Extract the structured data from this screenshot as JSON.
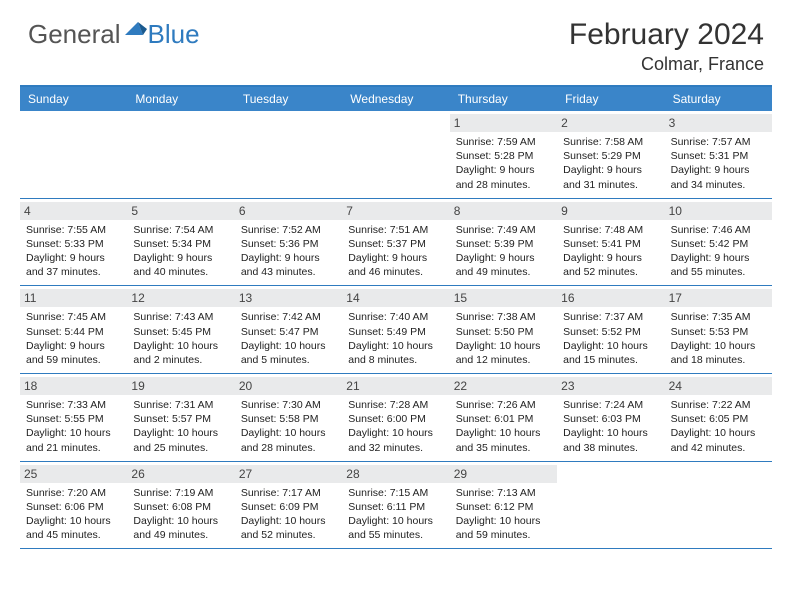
{
  "logo": {
    "text1": "General",
    "text2": "Blue"
  },
  "title": "February 2024",
  "location": "Colmar, France",
  "colors": {
    "header_bg": "#3a85c9",
    "border": "#2f7bbf",
    "daynum_bg": "#e9eaeb",
    "logo_gray": "#555555",
    "logo_blue": "#2f7bbf"
  },
  "weekdays": [
    "Sunday",
    "Monday",
    "Tuesday",
    "Wednesday",
    "Thursday",
    "Friday",
    "Saturday"
  ],
  "weeks": [
    [
      null,
      null,
      null,
      null,
      {
        "n": "1",
        "sr": "7:59 AM",
        "ss": "5:28 PM",
        "dl": "9 hours and 28 minutes."
      },
      {
        "n": "2",
        "sr": "7:58 AM",
        "ss": "5:29 PM",
        "dl": "9 hours and 31 minutes."
      },
      {
        "n": "3",
        "sr": "7:57 AM",
        "ss": "5:31 PM",
        "dl": "9 hours and 34 minutes."
      }
    ],
    [
      {
        "n": "4",
        "sr": "7:55 AM",
        "ss": "5:33 PM",
        "dl": "9 hours and 37 minutes."
      },
      {
        "n": "5",
        "sr": "7:54 AM",
        "ss": "5:34 PM",
        "dl": "9 hours and 40 minutes."
      },
      {
        "n": "6",
        "sr": "7:52 AM",
        "ss": "5:36 PM",
        "dl": "9 hours and 43 minutes."
      },
      {
        "n": "7",
        "sr": "7:51 AM",
        "ss": "5:37 PM",
        "dl": "9 hours and 46 minutes."
      },
      {
        "n": "8",
        "sr": "7:49 AM",
        "ss": "5:39 PM",
        "dl": "9 hours and 49 minutes."
      },
      {
        "n": "9",
        "sr": "7:48 AM",
        "ss": "5:41 PM",
        "dl": "9 hours and 52 minutes."
      },
      {
        "n": "10",
        "sr": "7:46 AM",
        "ss": "5:42 PM",
        "dl": "9 hours and 55 minutes."
      }
    ],
    [
      {
        "n": "11",
        "sr": "7:45 AM",
        "ss": "5:44 PM",
        "dl": "9 hours and 59 minutes."
      },
      {
        "n": "12",
        "sr": "7:43 AM",
        "ss": "5:45 PM",
        "dl": "10 hours and 2 minutes."
      },
      {
        "n": "13",
        "sr": "7:42 AM",
        "ss": "5:47 PM",
        "dl": "10 hours and 5 minutes."
      },
      {
        "n": "14",
        "sr": "7:40 AM",
        "ss": "5:49 PM",
        "dl": "10 hours and 8 minutes."
      },
      {
        "n": "15",
        "sr": "7:38 AM",
        "ss": "5:50 PM",
        "dl": "10 hours and 12 minutes."
      },
      {
        "n": "16",
        "sr": "7:37 AM",
        "ss": "5:52 PM",
        "dl": "10 hours and 15 minutes."
      },
      {
        "n": "17",
        "sr": "7:35 AM",
        "ss": "5:53 PM",
        "dl": "10 hours and 18 minutes."
      }
    ],
    [
      {
        "n": "18",
        "sr": "7:33 AM",
        "ss": "5:55 PM",
        "dl": "10 hours and 21 minutes."
      },
      {
        "n": "19",
        "sr": "7:31 AM",
        "ss": "5:57 PM",
        "dl": "10 hours and 25 minutes."
      },
      {
        "n": "20",
        "sr": "7:30 AM",
        "ss": "5:58 PM",
        "dl": "10 hours and 28 minutes."
      },
      {
        "n": "21",
        "sr": "7:28 AM",
        "ss": "6:00 PM",
        "dl": "10 hours and 32 minutes."
      },
      {
        "n": "22",
        "sr": "7:26 AM",
        "ss": "6:01 PM",
        "dl": "10 hours and 35 minutes."
      },
      {
        "n": "23",
        "sr": "7:24 AM",
        "ss": "6:03 PM",
        "dl": "10 hours and 38 minutes."
      },
      {
        "n": "24",
        "sr": "7:22 AM",
        "ss": "6:05 PM",
        "dl": "10 hours and 42 minutes."
      }
    ],
    [
      {
        "n": "25",
        "sr": "7:20 AM",
        "ss": "6:06 PM",
        "dl": "10 hours and 45 minutes."
      },
      {
        "n": "26",
        "sr": "7:19 AM",
        "ss": "6:08 PM",
        "dl": "10 hours and 49 minutes."
      },
      {
        "n": "27",
        "sr": "7:17 AM",
        "ss": "6:09 PM",
        "dl": "10 hours and 52 minutes."
      },
      {
        "n": "28",
        "sr": "7:15 AM",
        "ss": "6:11 PM",
        "dl": "10 hours and 55 minutes."
      },
      {
        "n": "29",
        "sr": "7:13 AM",
        "ss": "6:12 PM",
        "dl": "10 hours and 59 minutes."
      },
      null,
      null
    ]
  ],
  "labels": {
    "sunrise": "Sunrise: ",
    "sunset": "Sunset: ",
    "daylight": "Daylight: "
  }
}
